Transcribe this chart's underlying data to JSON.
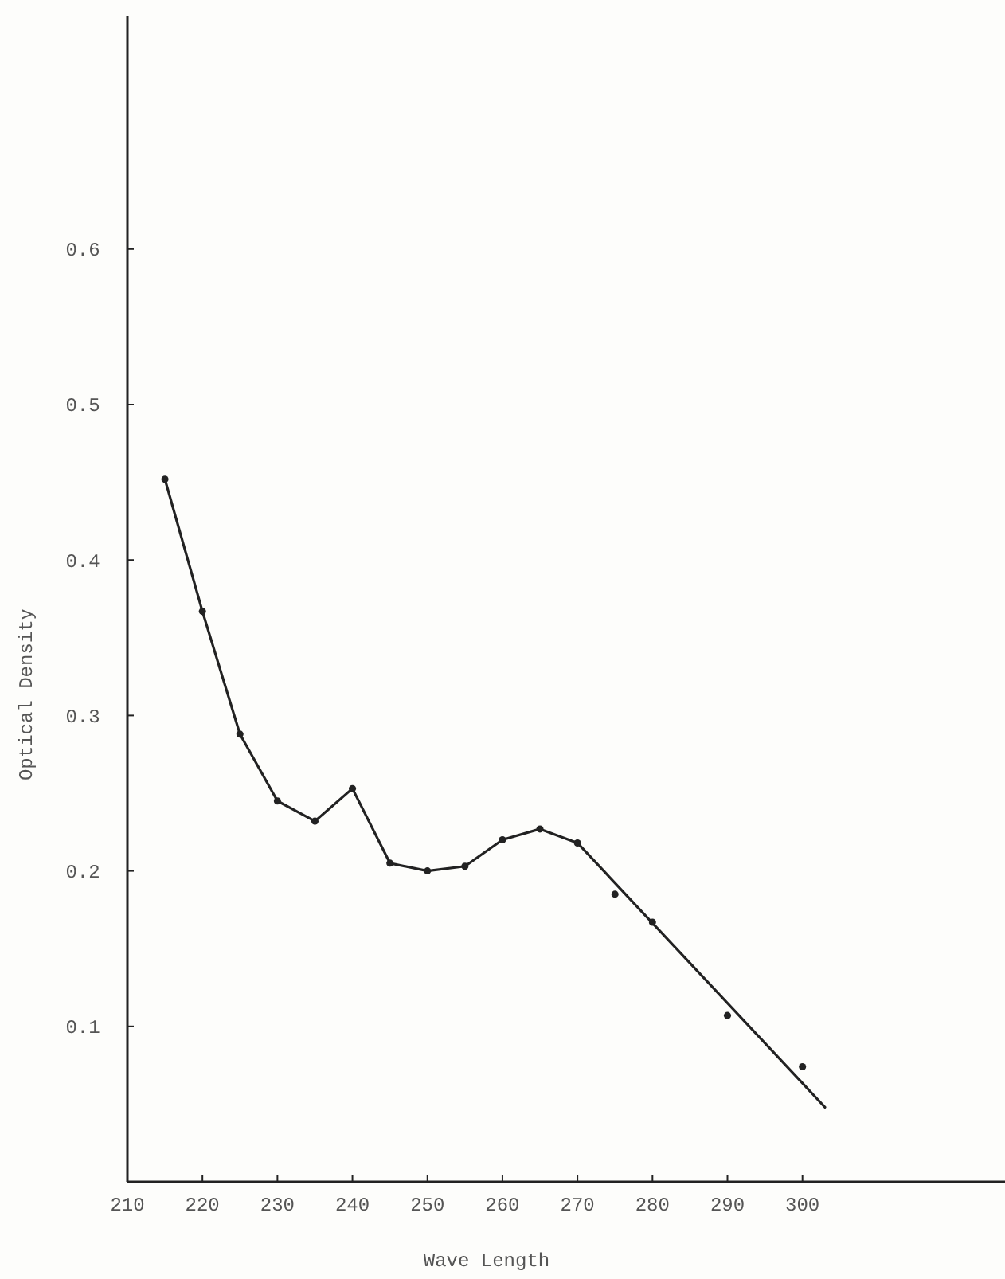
{
  "chart_data": {
    "type": "line",
    "xlabel": "Wave Length",
    "ylabel": "Optical Density",
    "xlim": [
      210,
      327
    ],
    "xticks": [
      210,
      220,
      230,
      240,
      250,
      260,
      270,
      280,
      290,
      300
    ],
    "ylim": [
      0,
      0.75
    ],
    "yticks": [
      0.1,
      0.2,
      0.3,
      0.4,
      0.5,
      0.6
    ],
    "grid": false,
    "series": [
      {
        "color": "#222222",
        "marker": "none",
        "line_style": "solid",
        "x": [
          215,
          220,
          225,
          230,
          235,
          240,
          245,
          250,
          255,
          260,
          265,
          270,
          303
        ],
        "values": [
          0.452,
          0.367,
          0.288,
          0.245,
          0.232,
          0.253,
          0.205,
          0.2,
          0.203,
          0.22,
          0.227,
          0.218,
          0.048
        ]
      },
      {
        "type": "scatter",
        "color": "#222222",
        "marker": "circle",
        "x": [
          215,
          220,
          225,
          230,
          235,
          240,
          245,
          250,
          255,
          260,
          265,
          270,
          275,
          280,
          290,
          300
        ],
        "values": [
          0.452,
          0.367,
          0.288,
          0.245,
          0.232,
          0.253,
          0.205,
          0.2,
          0.203,
          0.22,
          0.227,
          0.218,
          0.185,
          0.167,
          0.107,
          0.074
        ]
      }
    ]
  }
}
